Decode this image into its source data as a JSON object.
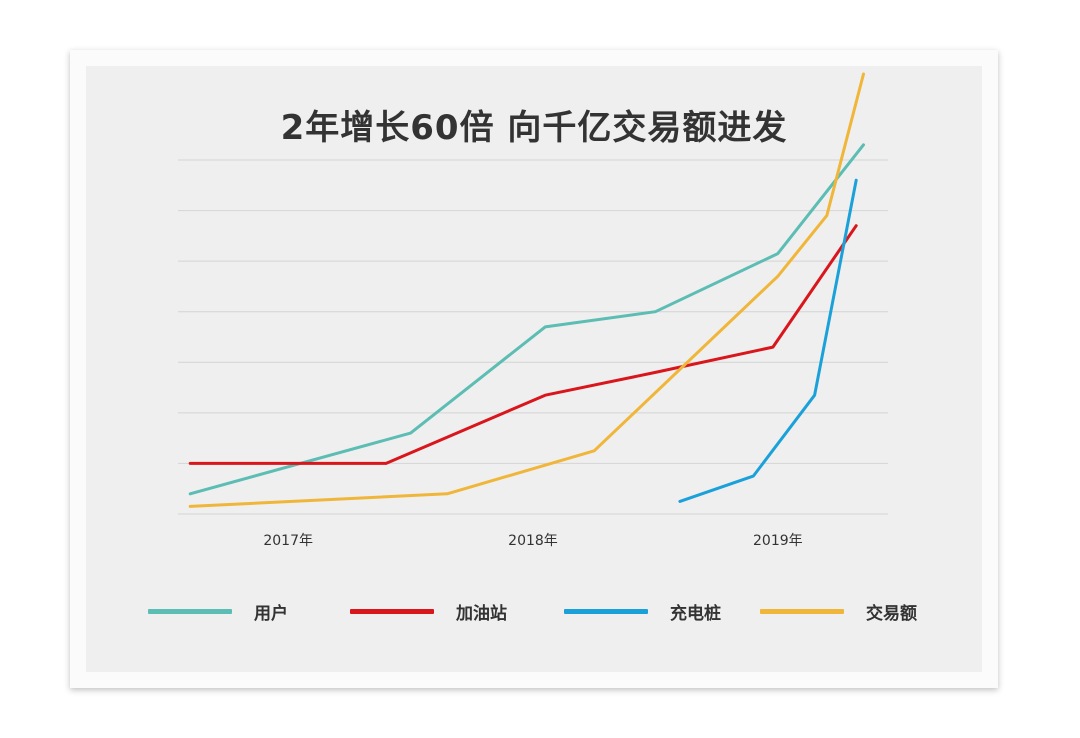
{
  "chart_data": {
    "type": "line",
    "title": "2年增长60倍  向千亿交易额进发",
    "xlabel": "",
    "ylabel": "",
    "categories": [
      "2017年",
      "2018年",
      "2019年"
    ],
    "x_domain": [
      2016.55,
      2019.45
    ],
    "ylim": [
      0,
      7
    ],
    "grid": "horizontal",
    "legend_position": "bottom",
    "series": [
      {
        "name": "用户",
        "color": "#5bbdb3",
        "points": [
          [
            2016.6,
            0.4
          ],
          [
            2017.5,
            1.6
          ],
          [
            2018.05,
            3.7
          ],
          [
            2018.5,
            4.0
          ],
          [
            2019.0,
            5.15
          ],
          [
            2019.35,
            7.3
          ]
        ]
      },
      {
        "name": "加油站",
        "color": "#d9161c",
        "points": [
          [
            2016.6,
            1.0
          ],
          [
            2017.4,
            1.0
          ],
          [
            2018.05,
            2.35
          ],
          [
            2018.5,
            2.8
          ],
          [
            2018.98,
            3.3
          ],
          [
            2019.32,
            5.7
          ]
        ]
      },
      {
        "name": "充电桩",
        "color": "#1ba1d9",
        "points": [
          [
            2018.6,
            0.25
          ],
          [
            2018.9,
            0.75
          ],
          [
            2019.15,
            2.35
          ],
          [
            2019.32,
            6.6
          ]
        ]
      },
      {
        "name": "交易额",
        "color": "#f0b63a",
        "points": [
          [
            2016.6,
            0.15
          ],
          [
            2017.65,
            0.4
          ],
          [
            2018.25,
            1.25
          ],
          [
            2019.0,
            4.7
          ],
          [
            2019.2,
            5.9
          ],
          [
            2019.35,
            8.7
          ]
        ]
      }
    ]
  }
}
